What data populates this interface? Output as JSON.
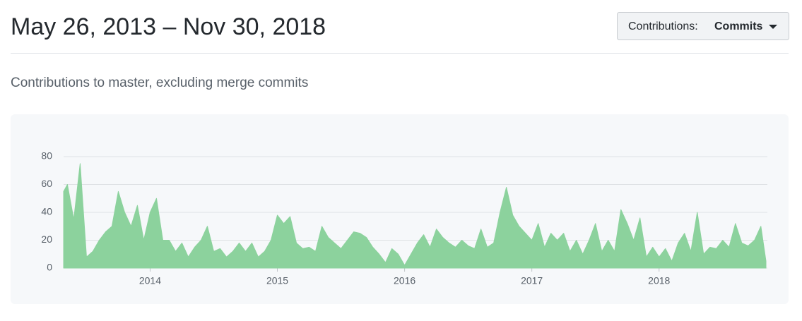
{
  "header": {
    "title": "May 26, 2013 – Nov 30, 2018",
    "button": {
      "label": "Contributions:",
      "value": "Commits"
    }
  },
  "subtitle": "Contributions to master, excluding merge commits",
  "chart_data": {
    "type": "area",
    "color": "#8cd29d",
    "grid": true,
    "xlim": [
      2013.32,
      2018.84
    ],
    "xticks": [
      2014,
      2015,
      2016,
      2017,
      2018
    ],
    "ylim": [
      0,
      80
    ],
    "yticks": [
      0,
      20,
      40,
      60,
      80
    ],
    "x": [
      2013.32,
      2013.35,
      2013.4,
      2013.45,
      2013.5,
      2013.55,
      2013.6,
      2013.65,
      2013.7,
      2013.75,
      2013.8,
      2013.85,
      2013.9,
      2013.95,
      2014,
      2014.05,
      2014.1,
      2014.15,
      2014.2,
      2014.25,
      2014.3,
      2014.35,
      2014.4,
      2014.45,
      2014.5,
      2014.55,
      2014.6,
      2014.65,
      2014.7,
      2014.75,
      2014.8,
      2014.85,
      2014.9,
      2014.95,
      2015,
      2015.05,
      2015.1,
      2015.15,
      2015.2,
      2015.25,
      2015.3,
      2015.35,
      2015.4,
      2015.45,
      2015.5,
      2015.55,
      2015.6,
      2015.65,
      2015.7,
      2015.75,
      2015.8,
      2015.85,
      2015.9,
      2015.95,
      2016,
      2016.05,
      2016.1,
      2016.15,
      2016.2,
      2016.25,
      2016.3,
      2016.35,
      2016.4,
      2016.45,
      2016.5,
      2016.55,
      2016.6,
      2016.65,
      2016.7,
      2016.75,
      2016.8,
      2016.85,
      2016.9,
      2016.95,
      2017,
      2017.05,
      2017.1,
      2017.15,
      2017.2,
      2017.25,
      2017.3,
      2017.35,
      2017.4,
      2017.45,
      2017.5,
      2017.55,
      2017.6,
      2017.65,
      2017.7,
      2017.75,
      2017.8,
      2017.85,
      2017.9,
      2017.95,
      2018,
      2018.05,
      2018.1,
      2018.15,
      2018.2,
      2018.25,
      2018.3,
      2018.35,
      2018.4,
      2018.45,
      2018.5,
      2018.55,
      2018.6,
      2018.65,
      2018.7,
      2018.75,
      2018.8,
      2018.84
    ],
    "values": [
      55,
      60,
      35,
      75,
      8,
      12,
      20,
      26,
      30,
      55,
      40,
      30,
      45,
      20,
      40,
      50,
      20,
      20,
      12,
      18,
      8,
      15,
      20,
      30,
      12,
      14,
      8,
      12,
      18,
      12,
      18,
      8,
      12,
      20,
      38,
      32,
      37,
      18,
      14,
      15,
      12,
      30,
      22,
      18,
      14,
      20,
      26,
      25,
      22,
      15,
      10,
      4,
      14,
      10,
      2,
      10,
      18,
      24,
      15,
      28,
      22,
      18,
      15,
      20,
      16,
      14,
      28,
      15,
      18,
      40,
      58,
      38,
      30,
      25,
      20,
      32,
      15,
      25,
      20,
      25,
      12,
      20,
      10,
      20,
      32,
      12,
      20,
      12,
      42,
      32,
      20,
      36,
      8,
      15,
      8,
      14,
      5,
      18,
      25,
      12,
      40,
      10,
      15,
      14,
      20,
      15,
      32,
      18,
      16,
      20,
      30,
      5
    ]
  }
}
